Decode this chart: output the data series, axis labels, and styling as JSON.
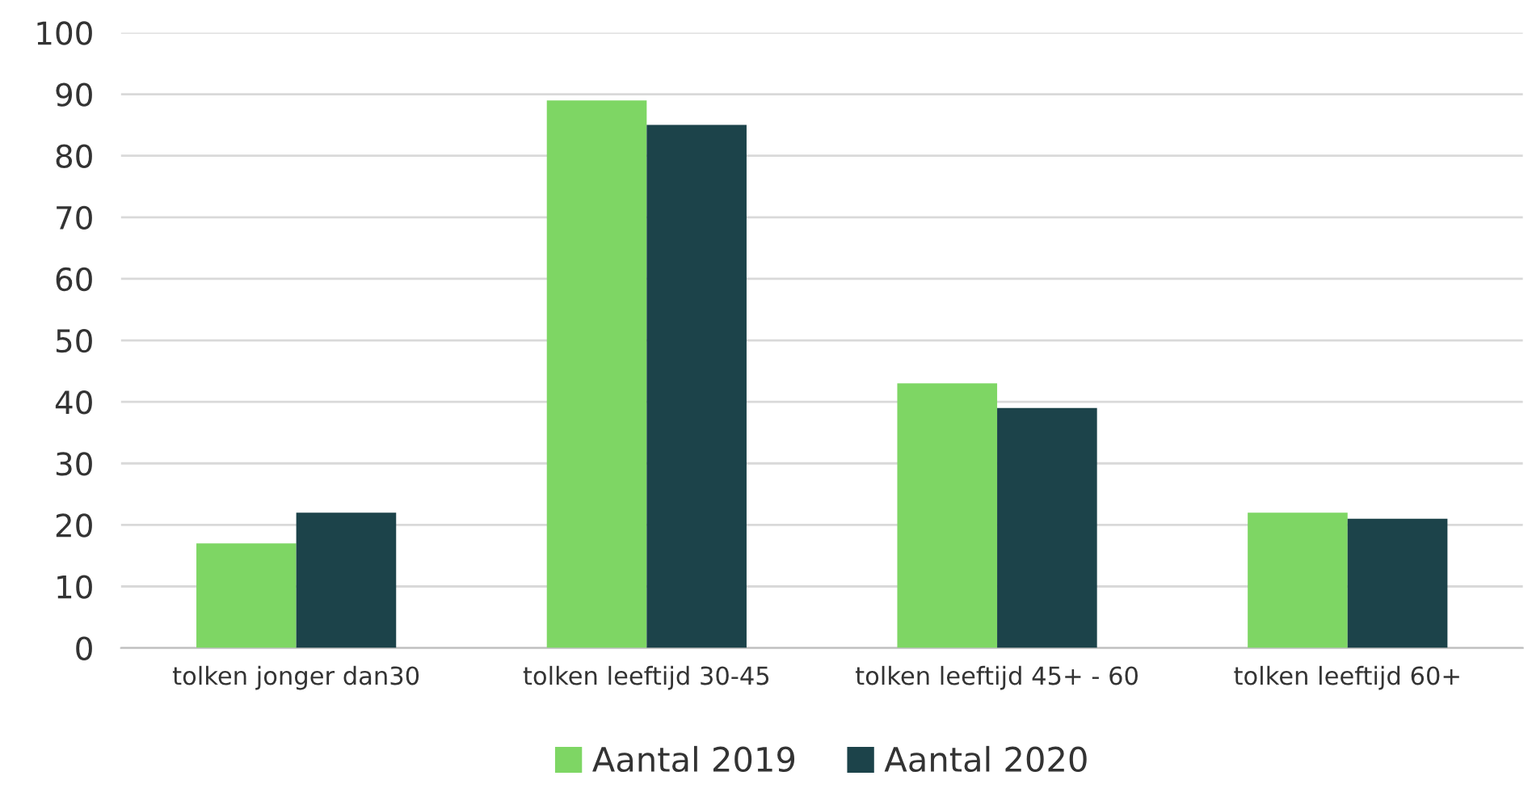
{
  "chart_data": {
    "type": "bar",
    "categories": [
      "tolken jonger dan30",
      "tolken leeftijd 30-45",
      "tolken leeftijd 45+ - 60",
      "tolken leeftijd 60+"
    ],
    "series": [
      {
        "name": "Aantal 2019",
        "color": "#7ed664",
        "values": [
          17,
          89,
          43,
          22
        ]
      },
      {
        "name": "Aantal 2020",
        "color": "#1c434a",
        "values": [
          22,
          85,
          39,
          21
        ]
      }
    ],
    "ylim": [
      0,
      100
    ],
    "yticks": [
      0,
      10,
      20,
      30,
      40,
      50,
      60,
      70,
      80,
      90,
      100
    ],
    "grid": "y",
    "legend": "bottom"
  }
}
